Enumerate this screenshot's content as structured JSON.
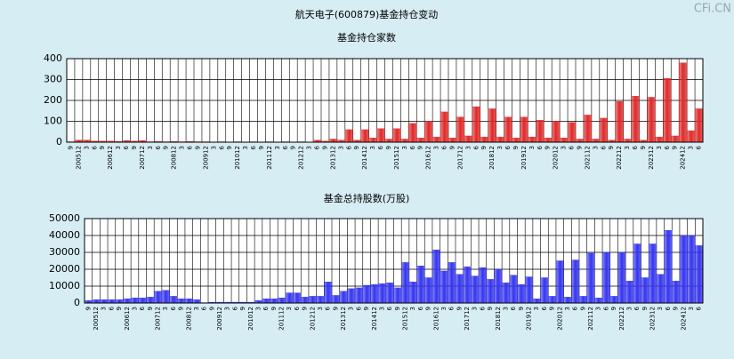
{
  "title": "航天电子(600879)基金持仓变动",
  "watermark": "CFi.CN",
  "chart_data": [
    {
      "type": "bar",
      "title": "基金持仓家数",
      "color": "#e02828",
      "categories": [
        "9",
        "200512",
        "3",
        "6",
        "9",
        "200612",
        "3",
        "6",
        "9",
        "200712",
        "3",
        "6",
        "9",
        "200812",
        "3",
        "6",
        "9",
        "200912",
        "3",
        "6",
        "9",
        "201012",
        "3",
        "6",
        "9",
        "201112",
        "3",
        "6",
        "9",
        "201212",
        "3",
        "6",
        "9",
        "201312",
        "3",
        "6",
        "9",
        "201412",
        "3",
        "6",
        "9",
        "201512",
        "3",
        "6",
        "9",
        "201612",
        "3",
        "6",
        "9",
        "201712",
        "3",
        "6",
        "9",
        "201812",
        "3",
        "6",
        "9",
        "201912",
        "3",
        "6",
        "9",
        "202012",
        "3",
        "6",
        "9",
        "202112",
        "3",
        "6",
        "9",
        "202212",
        "3",
        "6",
        "9",
        "202312",
        "3",
        "6",
        "9",
        "202412",
        "3",
        "6"
      ],
      "values": [
        2,
        10,
        10,
        5,
        5,
        5,
        3,
        8,
        5,
        8,
        2,
        3,
        2,
        3,
        2,
        3,
        2,
        2,
        1,
        2,
        1,
        2,
        1,
        2,
        1,
        2,
        1,
        2,
        1,
        2,
        1,
        10,
        5,
        15,
        10,
        60,
        10,
        60,
        20,
        65,
        15,
        65,
        15,
        90,
        20,
        100,
        25,
        145,
        20,
        120,
        30,
        170,
        25,
        160,
        25,
        120,
        20,
        120,
        25,
        105,
        20,
        100,
        20,
        95,
        15,
        130,
        15,
        115,
        10,
        195,
        15,
        220,
        10,
        215,
        25,
        305,
        30,
        380,
        55,
        160
      ],
      "ylim": [
        0,
        400
      ],
      "yticks": [
        0,
        100,
        200,
        300,
        400
      ],
      "grid": true
    },
    {
      "type": "bar",
      "title": "基金总持股数(万股)",
      "color": "#3434f0",
      "categories": [
        "9",
        "200512",
        "3",
        "6",
        "9",
        "200612",
        "3",
        "6",
        "9",
        "200712",
        "3",
        "6",
        "9",
        "200812",
        "3",
        "6",
        "9",
        "200912",
        "3",
        "6",
        "9",
        "201012",
        "3",
        "6",
        "9",
        "201112",
        "3",
        "6",
        "9",
        "201212",
        "3",
        "6",
        "9",
        "201312",
        "3",
        "6",
        "9",
        "201412",
        "3",
        "6",
        "9",
        "201512",
        "3",
        "6",
        "9",
        "201612",
        "3",
        "6",
        "9",
        "201712",
        "3",
        "6",
        "9",
        "201812",
        "3",
        "6",
        "9",
        "201912",
        "3",
        "6",
        "9",
        "202012",
        "3",
        "6",
        "9",
        "202112",
        "3",
        "6",
        "9",
        "202212",
        "3",
        "6",
        "9",
        "202312",
        "3",
        "6",
        "9",
        "202412",
        "3",
        "6"
      ],
      "values": [
        1500,
        2000,
        2000,
        2000,
        2000,
        2500,
        3000,
        3000,
        3500,
        7000,
        7500,
        4000,
        2500,
        2500,
        2000,
        200,
        500,
        500,
        500,
        500,
        500,
        500,
        1500,
        2500,
        2500,
        3000,
        6000,
        6000,
        3500,
        4000,
        4000,
        12500,
        4500,
        7000,
        8500,
        9000,
        10500,
        11000,
        11500,
        12000,
        9000,
        24000,
        12500,
        22000,
        15000,
        31500,
        19000,
        24000,
        17000,
        21500,
        16000,
        21000,
        14000,
        20000,
        12000,
        16500,
        11000,
        15500,
        2500,
        15000,
        4000,
        25000,
        3500,
        25500,
        4000,
        29500,
        3000,
        30000,
        4000,
        30000,
        13000,
        35000,
        15000,
        35000,
        17000,
        43000,
        13000,
        40000,
        40000,
        34000
      ],
      "ylim": [
        0,
        50000
      ],
      "yticks": [
        0,
        10000,
        20000,
        30000,
        40000,
        50000
      ],
      "grid": true
    }
  ]
}
